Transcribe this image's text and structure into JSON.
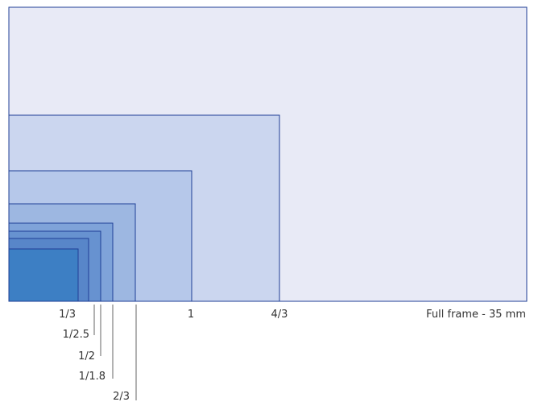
{
  "sensors": [
    {
      "label": "Full frame - 35 mm",
      "fill": "#e8eaf6"
    },
    {
      "label": "4/3",
      "fill": "#cbd6ef"
    },
    {
      "label": "1",
      "fill": "#b6c8ea"
    },
    {
      "label": "2/3",
      "fill": "#9db7e1"
    },
    {
      "label": "1/1.8",
      "fill": "#7fa3d9"
    },
    {
      "label": "1/2",
      "fill": "#6792d0"
    },
    {
      "label": "1/2.5",
      "fill": "#5886c9"
    },
    {
      "label": "1/3",
      "fill": "#3d7fc4"
    }
  ],
  "colors": {
    "outline": "#1f3f96",
    "leader_line": "#666666",
    "text": "#333333"
  }
}
